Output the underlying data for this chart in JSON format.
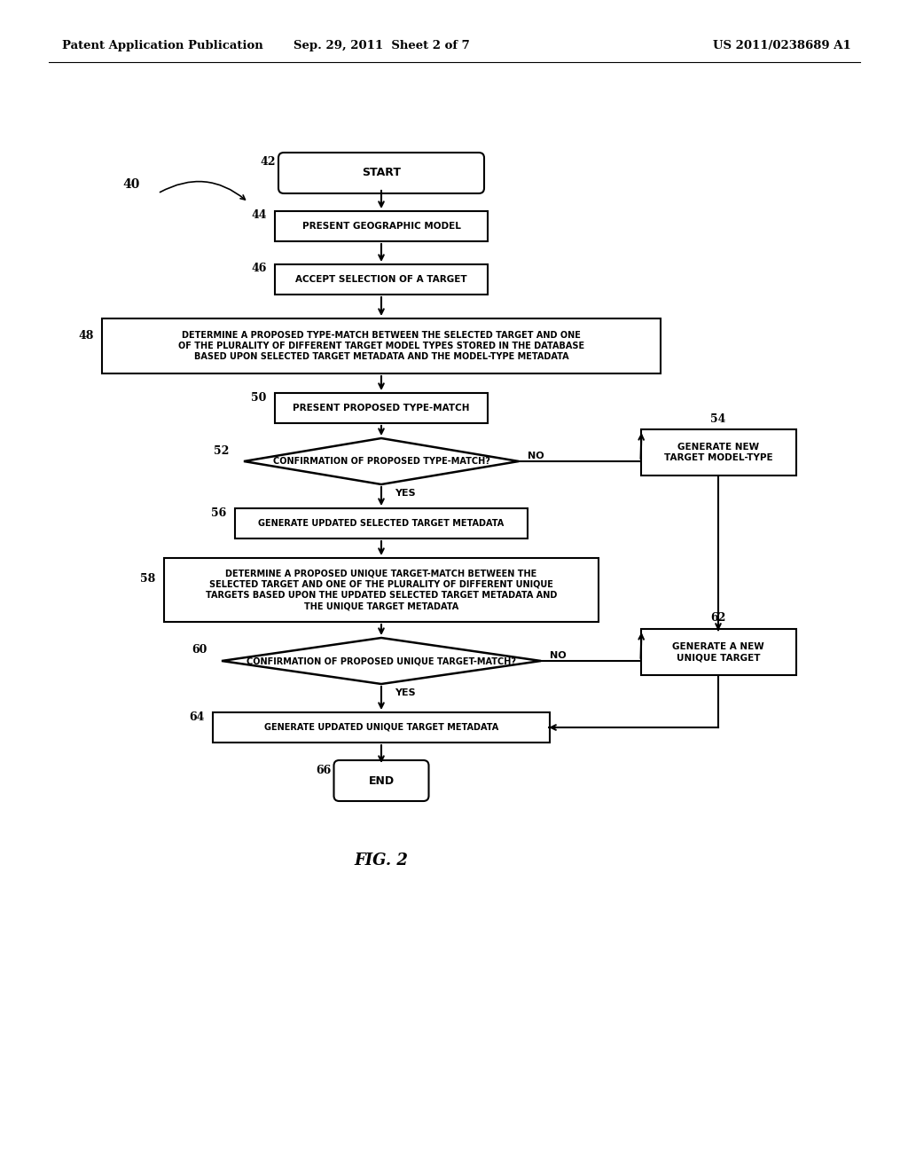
{
  "header_left": "Patent Application Publication",
  "header_mid": "Sep. 29, 2011  Sheet 2 of 7",
  "header_right": "US 2011/0238689 A1",
  "fig_label": "FIG. 2",
  "bg_color": "#ffffff",
  "line_color": "#000000"
}
